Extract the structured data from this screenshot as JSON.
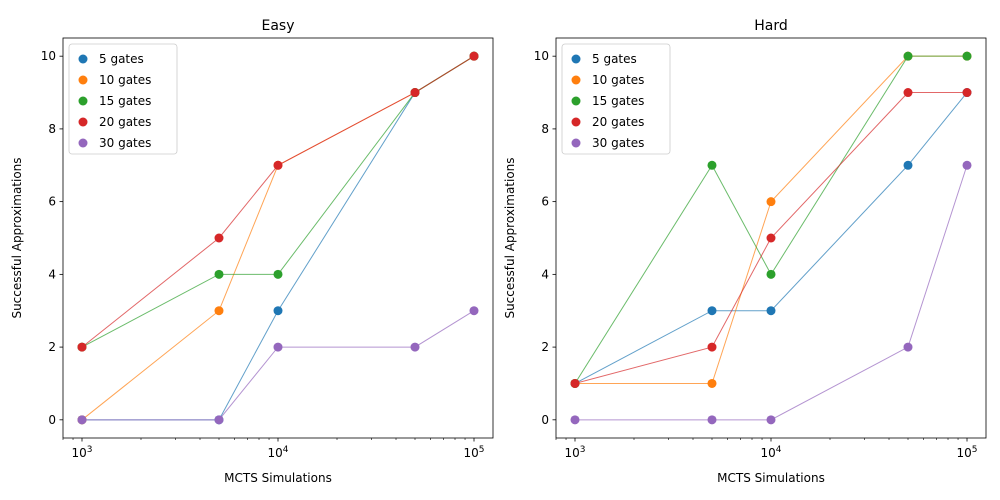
{
  "chart_data": [
    {
      "type": "scatter",
      "title": "Easy",
      "xlabel": "MCTS Simulations",
      "ylabel": "Successful Approximations",
      "xscale": "log",
      "x": [
        1000,
        5000,
        10000,
        50000,
        100000
      ],
      "xlim": [
        800,
        125000
      ],
      "ylim": [
        -0.5,
        10.5
      ],
      "xticks": [
        {
          "value": 1000,
          "base": "10",
          "exp": "3"
        },
        {
          "value": 10000,
          "base": "10",
          "exp": "4"
        },
        {
          "value": 100000,
          "base": "10",
          "exp": "5"
        }
      ],
      "yticks": [
        0,
        2,
        4,
        6,
        8,
        10
      ],
      "legend_position": "top-left",
      "series": [
        {
          "name": "5 gates",
          "color": "#1f77b4",
          "values": [
            0,
            0,
            3,
            9,
            10
          ]
        },
        {
          "name": "10 gates",
          "color": "#ff7f0e",
          "values": [
            0,
            3,
            7,
            9,
            10
          ]
        },
        {
          "name": "15 gates",
          "color": "#2ca02c",
          "values": [
            2,
            4,
            4,
            9,
            10
          ]
        },
        {
          "name": "20 gates",
          "color": "#d62728",
          "values": [
            2,
            5,
            7,
            9,
            10
          ]
        },
        {
          "name": "30 gates",
          "color": "#9467bd",
          "values": [
            0,
            0,
            2,
            2,
            3
          ]
        }
      ]
    },
    {
      "type": "scatter",
      "title": "Hard",
      "xlabel": "MCTS Simulations",
      "ylabel": "Successful Approximations",
      "xscale": "log",
      "x": [
        1000,
        5000,
        10000,
        50000,
        100000
      ],
      "xlim": [
        800,
        125000
      ],
      "ylim": [
        -0.5,
        10.5
      ],
      "xticks": [
        {
          "value": 1000,
          "base": "10",
          "exp": "3"
        },
        {
          "value": 10000,
          "base": "10",
          "exp": "4"
        },
        {
          "value": 100000,
          "base": "10",
          "exp": "5"
        }
      ],
      "yticks": [
        0,
        2,
        4,
        6,
        8,
        10
      ],
      "legend_position": "top-left",
      "series": [
        {
          "name": "5 gates",
          "color": "#1f77b4",
          "values": [
            1,
            3,
            3,
            7,
            9
          ]
        },
        {
          "name": "10 gates",
          "color": "#ff7f0e",
          "values": [
            1,
            1,
            6,
            10,
            10
          ]
        },
        {
          "name": "15 gates",
          "color": "#2ca02c",
          "values": [
            1,
            7,
            4,
            10,
            10
          ]
        },
        {
          "name": "20 gates",
          "color": "#d62728",
          "values": [
            1,
            2,
            5,
            9,
            9
          ]
        },
        {
          "name": "30 gates",
          "color": "#9467bd",
          "values": [
            0,
            0,
            0,
            2,
            7
          ]
        }
      ]
    }
  ]
}
